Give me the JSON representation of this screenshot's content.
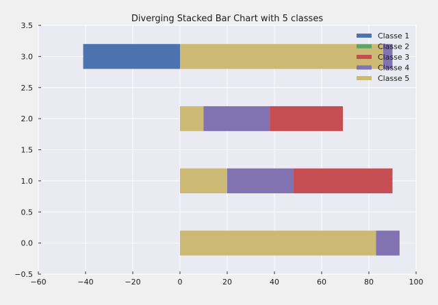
{
  "chart_data": {
    "type": "bar",
    "orientation": "horizontal",
    "stacking": "diverging",
    "title": "Diverging Stacked Bar Chart with 5 classes",
    "xlabel": "",
    "ylabel": "",
    "xlim": [
      -60,
      100
    ],
    "ylim": [
      -0.5,
      3.5
    ],
    "xticks": [
      -60,
      -40,
      -20,
      0,
      20,
      40,
      60,
      80,
      100
    ],
    "yticks": [
      -0.5,
      0.0,
      0.5,
      1.0,
      1.5,
      2.0,
      2.5,
      3.0,
      3.5
    ],
    "xtick_labels": [
      "−60",
      "−40",
      "−20",
      "0",
      "20",
      "40",
      "60",
      "80",
      "100"
    ],
    "ytick_labels": [
      "−0.5",
      "0.0",
      "0.5",
      "1.0",
      "1.5",
      "2.0",
      "2.5",
      "3.0",
      "3.5"
    ],
    "grid": true,
    "legend_position": "top-right",
    "background": "#eaeaf2",
    "categories": [
      0,
      1,
      2,
      3
    ],
    "series": [
      {
        "name": "Classe 1",
        "color": "#4c72b0",
        "segments": [
          null,
          null,
          null,
          [
            -41,
            0
          ]
        ]
      },
      {
        "name": "Classe 2",
        "color": "#55a868",
        "segments": [
          null,
          null,
          null,
          null
        ]
      },
      {
        "name": "Classe 3",
        "color": "#c44e52",
        "segments": [
          null,
          [
            48,
            90
          ],
          [
            38,
            69
          ],
          null
        ]
      },
      {
        "name": "Classe 4",
        "color": "#8172b2",
        "segments": [
          [
            83,
            93
          ],
          [
            20,
            48
          ],
          [
            10,
            38
          ],
          [
            86,
            90
          ]
        ]
      },
      {
        "name": "Classe 5",
        "color": "#ccb974",
        "segments": [
          [
            0,
            83
          ],
          [
            0,
            20
          ],
          [
            0,
            10
          ],
          [
            0,
            86
          ]
        ]
      }
    ]
  }
}
